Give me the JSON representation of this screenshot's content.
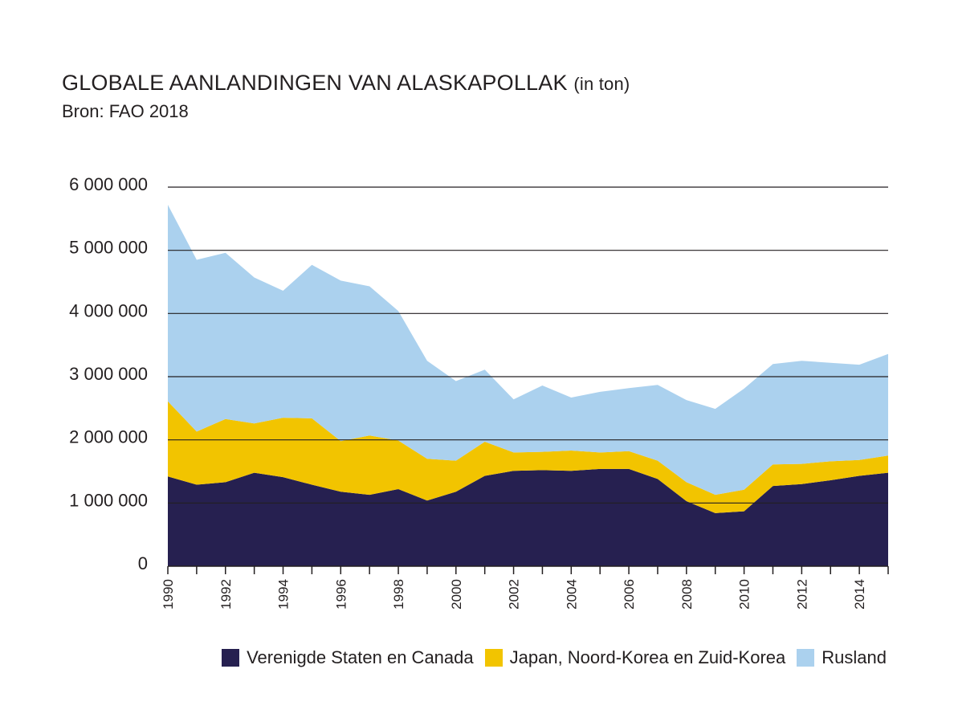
{
  "header": {
    "title": "GLOBALE AANLANDINGEN VAN ALASKAPOLLAK",
    "title_unit": "(in ton)",
    "source": "Bron: FAO 2018"
  },
  "colors": {
    "us_canada": "#262050",
    "japan_korea": "#f2c400",
    "russia": "#abd1ee",
    "gridline": "#231f20",
    "axis": "#231f20"
  },
  "chart_data": {
    "type": "area",
    "stacked": true,
    "title": "GLOBALE AANLANDINGEN VAN ALASKAPOLLAK (in ton)",
    "subtitle": "Bron: FAO 2018",
    "xlabel": "",
    "ylabel": "",
    "x": [
      1990,
      1991,
      1992,
      1993,
      1994,
      1995,
      1996,
      1997,
      1998,
      1999,
      2000,
      2001,
      2002,
      2003,
      2004,
      2005,
      2006,
      2007,
      2008,
      2009,
      2010,
      2011,
      2012,
      2013,
      2014,
      2015
    ],
    "x_tick_labels": [
      "1990",
      "1992",
      "1994",
      "1996",
      "1998",
      "2000",
      "2002",
      "2004",
      "2006",
      "2008",
      "2010",
      "2012",
      "2014"
    ],
    "y_tick_labels": [
      "0",
      "1 000 000",
      "2 000 000",
      "3 000 000",
      "4 000 000",
      "5 000 000",
      "6 000 000"
    ],
    "y_tick_values": [
      0,
      1000000,
      2000000,
      3000000,
      4000000,
      5000000,
      6000000
    ],
    "ylim": [
      0,
      6000000
    ],
    "grid": "horizontal",
    "legend_position": "bottom-right",
    "series": [
      {
        "name": "Verenigde Staten en Canada",
        "color": "#262050",
        "values": [
          1420000,
          1290000,
          1330000,
          1480000,
          1410000,
          1290000,
          1180000,
          1130000,
          1220000,
          1040000,
          1180000,
          1430000,
          1510000,
          1520000,
          1510000,
          1540000,
          1540000,
          1380000,
          1030000,
          840000,
          870000,
          1270000,
          1300000,
          1360000,
          1430000,
          1480000
        ]
      },
      {
        "name": "Japan, Noord-Korea en Zuid-Korea",
        "color": "#f2c400",
        "values": [
          1190000,
          840000,
          1000000,
          780000,
          940000,
          1050000,
          800000,
          940000,
          770000,
          660000,
          490000,
          540000,
          290000,
          290000,
          320000,
          260000,
          280000,
          290000,
          300000,
          290000,
          340000,
          340000,
          320000,
          300000,
          250000,
          270000
        ]
      },
      {
        "name": "Rusland",
        "color": "#abd1ee",
        "values": [
          3110000,
          2720000,
          2630000,
          2310000,
          2010000,
          2430000,
          2540000,
          2360000,
          2050000,
          1550000,
          1260000,
          1140000,
          840000,
          1050000,
          840000,
          960000,
          1000000,
          1200000,
          1300000,
          1360000,
          1600000,
          1590000,
          1630000,
          1560000,
          1510000,
          1610000
        ]
      }
    ]
  }
}
